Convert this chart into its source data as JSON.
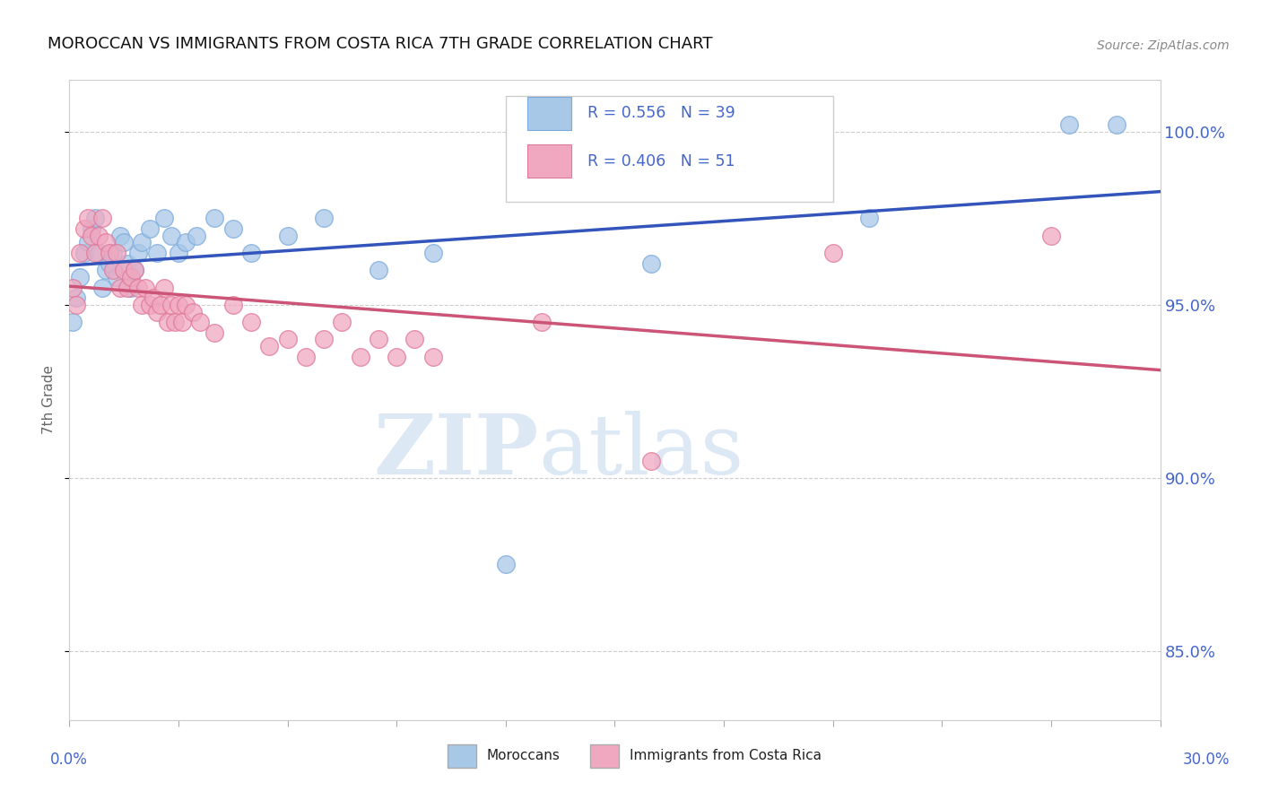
{
  "title": "MOROCCAN VS IMMIGRANTS FROM COSTA RICA 7TH GRADE CORRELATION CHART",
  "source": "Source: ZipAtlas.com",
  "ylabel": "7th Grade",
  "watermark_zip": "ZIP",
  "watermark_atlas": "atlas",
  "xlim": [
    0.0,
    30.0
  ],
  "ylim": [
    83.0,
    101.5
  ],
  "yticks": [
    85.0,
    90.0,
    95.0,
    100.0
  ],
  "moroccan_R": 0.556,
  "moroccan_N": 39,
  "costarica_R": 0.406,
  "costarica_N": 51,
  "moroccan_color": "#a8c8e8",
  "moroccan_edge_color": "#7aaadd",
  "moroccan_line_color": "#3355bb",
  "costarica_color": "#f0a8c0",
  "costarica_edge_color": "#e07898",
  "costarica_line_color": "#cc5577",
  "background_color": "#ffffff",
  "grid_color": "#cccccc",
  "axis_label_color": "#4466cc",
  "moroccan_x": [
    0.1,
    0.2,
    0.3,
    0.4,
    0.5,
    0.6,
    0.7,
    0.8,
    0.9,
    1.0,
    1.1,
    1.2,
    1.3,
    1.4,
    1.5,
    1.6,
    1.7,
    1.8,
    1.9,
    2.0,
    2.2,
    2.4,
    2.6,
    2.8,
    3.0,
    3.2,
    3.5,
    4.0,
    4.5,
    5.0,
    6.0,
    7.0,
    8.5,
    10.0,
    12.0,
    16.0,
    22.0,
    27.5,
    28.8
  ],
  "moroccan_y": [
    94.5,
    95.2,
    95.8,
    96.5,
    96.8,
    97.2,
    97.5,
    96.5,
    95.5,
    96.0,
    96.2,
    96.5,
    95.8,
    97.0,
    96.8,
    96.2,
    95.5,
    96.0,
    96.5,
    96.8,
    97.2,
    96.5,
    97.5,
    97.0,
    96.5,
    96.8,
    97.0,
    97.5,
    97.2,
    96.5,
    97.0,
    97.5,
    96.0,
    96.5,
    87.5,
    96.2,
    97.5,
    100.2,
    100.2
  ],
  "costarica_x": [
    0.1,
    0.2,
    0.3,
    0.4,
    0.5,
    0.6,
    0.7,
    0.8,
    0.9,
    1.0,
    1.1,
    1.2,
    1.3,
    1.4,
    1.5,
    1.6,
    1.7,
    1.8,
    1.9,
    2.0,
    2.1,
    2.2,
    2.3,
    2.4,
    2.5,
    2.6,
    2.7,
    2.8,
    2.9,
    3.0,
    3.1,
    3.2,
    3.4,
    3.6,
    4.0,
    4.5,
    5.0,
    5.5,
    6.0,
    6.5,
    7.0,
    7.5,
    8.0,
    8.5,
    9.0,
    9.5,
    10.0,
    13.0,
    16.0,
    21.0,
    27.0
  ],
  "costarica_y": [
    95.5,
    95.0,
    96.5,
    97.2,
    97.5,
    97.0,
    96.5,
    97.0,
    97.5,
    96.8,
    96.5,
    96.0,
    96.5,
    95.5,
    96.0,
    95.5,
    95.8,
    96.0,
    95.5,
    95.0,
    95.5,
    95.0,
    95.2,
    94.8,
    95.0,
    95.5,
    94.5,
    95.0,
    94.5,
    95.0,
    94.5,
    95.0,
    94.8,
    94.5,
    94.2,
    95.0,
    94.5,
    93.8,
    94.0,
    93.5,
    94.0,
    94.5,
    93.5,
    94.0,
    93.5,
    94.0,
    93.5,
    94.5,
    90.5,
    96.5,
    97.0
  ]
}
